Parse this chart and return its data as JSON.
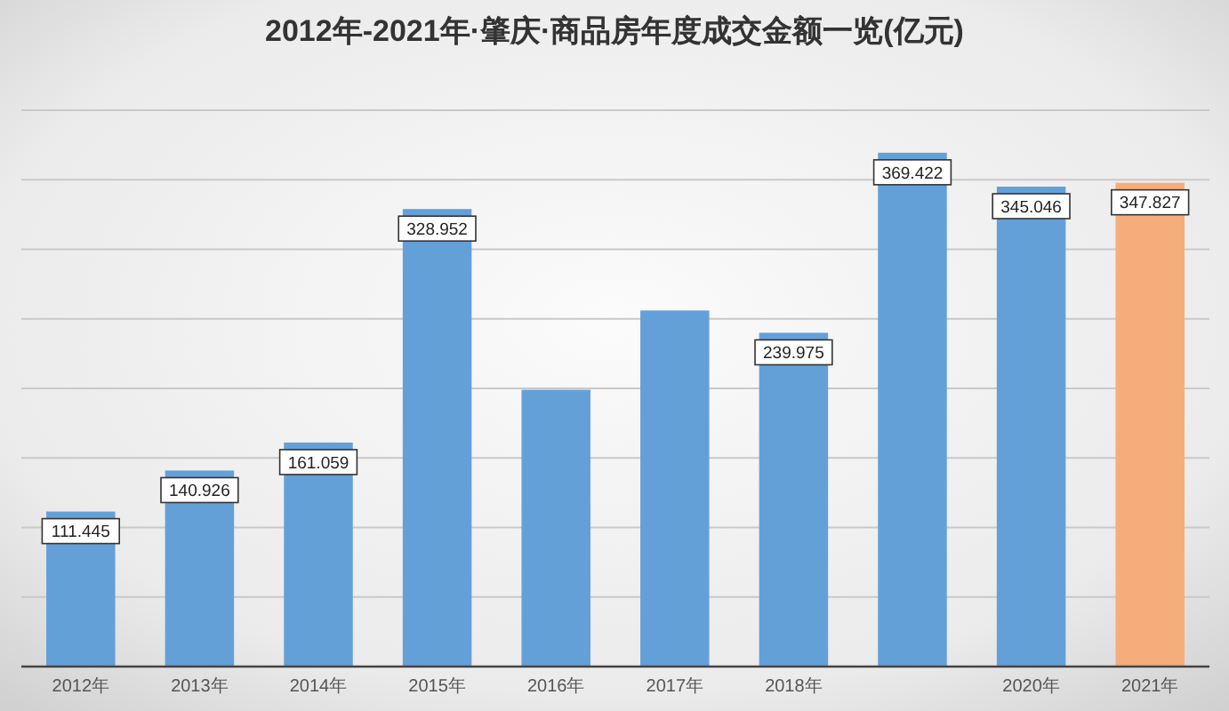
{
  "chart_data": {
    "type": "bar",
    "title": "2012年-2021年·肇庆·商品房年度成交金额一览(亿元)",
    "categories": [
      "2012年",
      "2013年",
      "2014年",
      "2015年",
      "2016年",
      "2017年",
      "2018年",
      null,
      "2020年",
      "2021年"
    ],
    "values": [
      111.445,
      140.926,
      161.059,
      328.952,
      199,
      256,
      239.975,
      369.422,
      345.046,
      347.827
    ],
    "value_labels": [
      "111.445",
      "140.926",
      "161.059",
      "328.952",
      null,
      null,
      "239.975",
      "369.422",
      "345.046",
      "347.827"
    ],
    "colors": [
      "#64a0d8",
      "#64a0d8",
      "#64a0d8",
      "#64a0d8",
      "#64a0d8",
      "#64a0d8",
      "#64a0d8",
      "#64a0d8",
      "#64a0d8",
      "#f5ad7c"
    ],
    "ylim": [
      0,
      400
    ],
    "yticks": [
      {
        "value": 0,
        "label": null
      },
      {
        "value": 50,
        "label": null
      },
      {
        "value": 100,
        "label": null
      },
      {
        "value": 150,
        "label": null
      },
      {
        "value": 200,
        "label": null
      },
      {
        "value": 250,
        "label": null
      },
      {
        "value": 300,
        "label": null
      },
      {
        "value": 350,
        "label": null
      },
      {
        "value": 400,
        "label": null
      }
    ],
    "grid": "y",
    "tick_labels": "x"
  }
}
